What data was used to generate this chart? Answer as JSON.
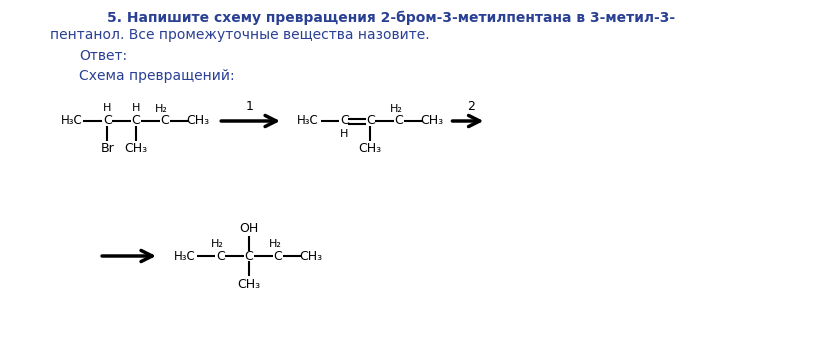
{
  "title_bold": "5. ",
  "title_part1": "5. Напишите схему превращения 2-бром-3-метилпентана в 3-метил-3-",
  "title_part2": "пентанол. Все промежуточные вещества назовите.",
  "answer_label": "Ответ:",
  "scheme_label": "Схема превращений:",
  "bg_color": "#ffffff",
  "text_color": "#000000",
  "blue_color": "#2a4094",
  "line_color": "#000000"
}
